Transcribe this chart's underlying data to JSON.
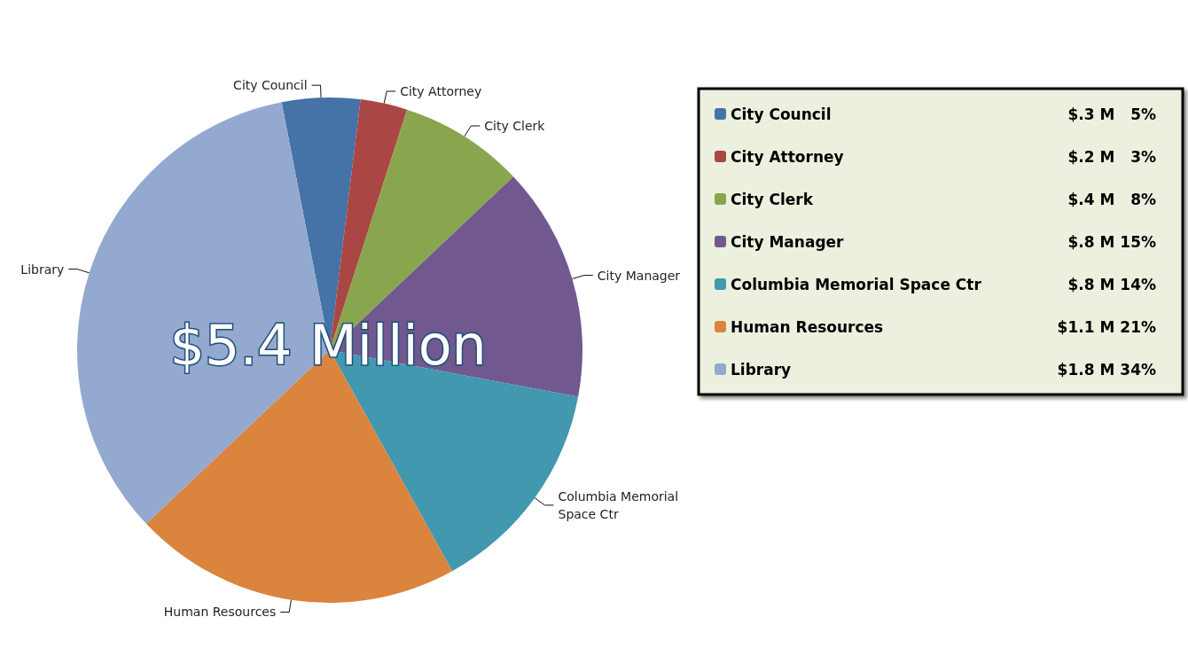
{
  "chart_data": {
    "type": "pie",
    "categories": [
      "City Council",
      "City Attorney",
      "City Clerk",
      "City Manager",
      "Columbia Memorial Space Ctr",
      "Human Resources",
      "Library"
    ],
    "values": [
      5,
      3,
      8,
      15,
      14,
      21,
      34
    ],
    "colors": [
      "#4572a7",
      "#aa4643",
      "#89a54e",
      "#71588f",
      "#4198af",
      "#db843d",
      "#93a9cf"
    ],
    "value_labels": [
      "$.3 M   5%",
      "$.2 M   3%",
      "$.4 M   8%",
      "$.8 M 15%",
      "$.8 M 14%",
      "$1.1 M 21%",
      "$1.8 M 34%"
    ],
    "annotations": [
      "$5.4 Million"
    ],
    "legend": "right"
  }
}
